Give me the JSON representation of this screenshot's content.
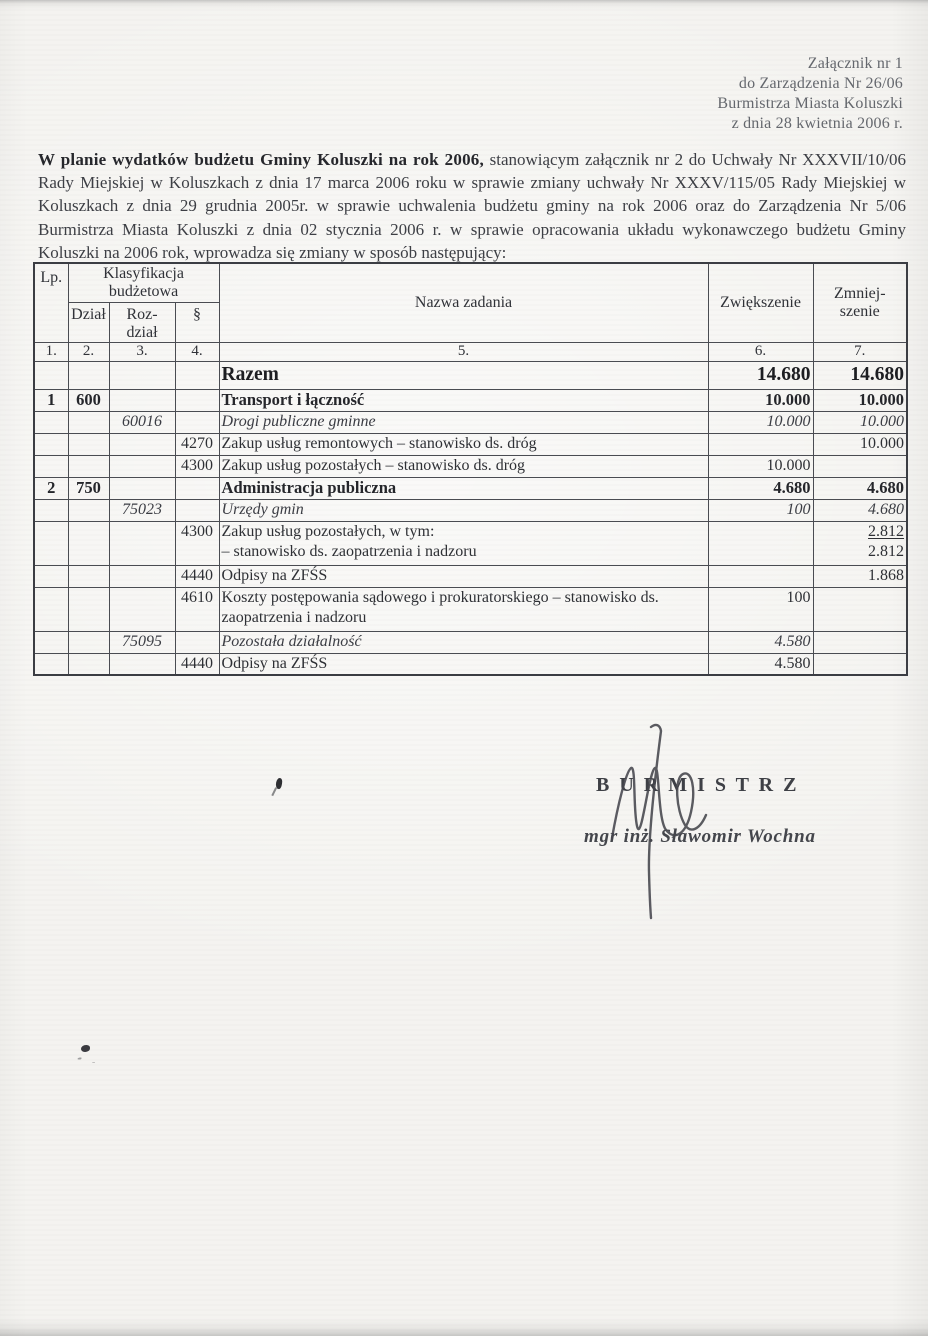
{
  "page": {
    "attachment_lines": [
      "Załącznik nr 1",
      "do Zarządzenia Nr 26/06",
      "Burmistrza Miasta Koluszki",
      "z dnia 28 kwietnia 2006 r."
    ],
    "intro": {
      "bold": "W planie wydatków budżetu Gminy Koluszki na rok 2006,",
      "rest": " stanowiącym załącznik nr 2 do Uchwały Nr XXXVII/10/06 Rady Miejskiej w Koluszkach z dnia 17 marca 2006 roku  w sprawie zmiany uchwały Nr XXXV/115/05 Rady Miejskiej w Koluszkach z dnia 29 grudnia 2005r. w sprawie uchwalenia budżetu gminy na rok 2006 oraz do Zarządzenia Nr 5/06 Burmistrza Miasta Koluszki z dnia 02 stycznia 2006 r. w sprawie opracowania układu wykonawczego budżetu Gminy Koluszki na 2006 rok, wprowadza się  zmiany w sposób następujący:"
    }
  },
  "table": {
    "headers": {
      "lp": "Lp.",
      "klasyfikacja": "Klasyfikacja\nbudżetowa",
      "dzial": "Dział",
      "rozdzial": "Roz-\ndział",
      "paragraf": "§",
      "nazwa": "Nazwa zadania",
      "zwiekszenie": "Zwiększenie",
      "zmniejszenie": "Zmniej-\nszenie"
    },
    "column_numbers": [
      "1.",
      "2.",
      "3.",
      "4.",
      "5.",
      "6.",
      "7."
    ],
    "rows": [
      {
        "style": "razem",
        "lp": "",
        "dzial": "",
        "rozdzial": "",
        "par": "",
        "nazwa": "Razem",
        "zw": "14.680",
        "zm": "14.680"
      },
      {
        "style": "bold",
        "lp": "1",
        "dzial": "600",
        "rozdzial": "",
        "par": "",
        "nazwa": "Transport i łączność",
        "zw": "10.000",
        "zm": "10.000"
      },
      {
        "style": "italic",
        "lp": "",
        "dzial": "",
        "rozdzial": "60016",
        "par": "",
        "nazwa": "Drogi publiczne gminne",
        "zw": "10.000",
        "zm": "10.000"
      },
      {
        "style": "normal",
        "lp": "",
        "dzial": "",
        "rozdzial": "",
        "par": "4270",
        "nazwa": "Zakup usług remontowych – stanowisko ds. dróg",
        "zw": "",
        "zm": "10.000"
      },
      {
        "style": "normal",
        "lp": "",
        "dzial": "",
        "rozdzial": "",
        "par": "4300",
        "nazwa": "Zakup usług pozostałych – stanowisko ds. dróg",
        "zw": "10.000",
        "zm": ""
      },
      {
        "style": "bold",
        "lp": "2",
        "dzial": "750",
        "rozdzial": "",
        "par": "",
        "nazwa": "Administracja publiczna",
        "zw": "4.680",
        "zm": "4.680"
      },
      {
        "style": "italic",
        "lp": "",
        "dzial": "",
        "rozdzial": "75023",
        "par": "",
        "nazwa": "Urzędy gmin",
        "zw": "100",
        "zm": "4.680"
      },
      {
        "style": "normal",
        "lp": "",
        "dzial": "",
        "rozdzial": "",
        "par": "4300",
        "nazwa": "Zakup usług pozostałych, w tym:\n–  stanowisko ds. zaopatrzenia i nadzoru",
        "zw": "",
        "zm_lines": [
          {
            "text": "2.812",
            "underlined": true
          },
          {
            "text": "2.812",
            "underlined": false
          }
        ]
      },
      {
        "style": "normal",
        "lp": "",
        "dzial": "",
        "rozdzial": "",
        "par": "4440",
        "nazwa": "Odpisy na ZFŚS",
        "zw": "",
        "zm": "1.868"
      },
      {
        "style": "normal",
        "lp": "",
        "dzial": "",
        "rozdzial": "",
        "par": "4610",
        "nazwa": "Koszty postępowania sądowego i prokuratorskiego – stanowisko ds.\nzaopatrzenia i nadzoru",
        "zw": "100",
        "zm": ""
      },
      {
        "style": "italic",
        "lp": "",
        "dzial": "",
        "rozdzial": "75095",
        "par": "",
        "nazwa": "Pozostała działalność",
        "zw": "4.580",
        "zm": ""
      },
      {
        "style": "normal",
        "lp": "",
        "dzial": "",
        "rozdzial": "",
        "par": "4440",
        "nazwa": "Odpisy na ZFŚS",
        "zw": "4.580",
        "zm": ""
      }
    ]
  },
  "signature": {
    "title": "B U R M I S T R Z",
    "name": "mgr inż. Sławomir Wochna"
  }
}
